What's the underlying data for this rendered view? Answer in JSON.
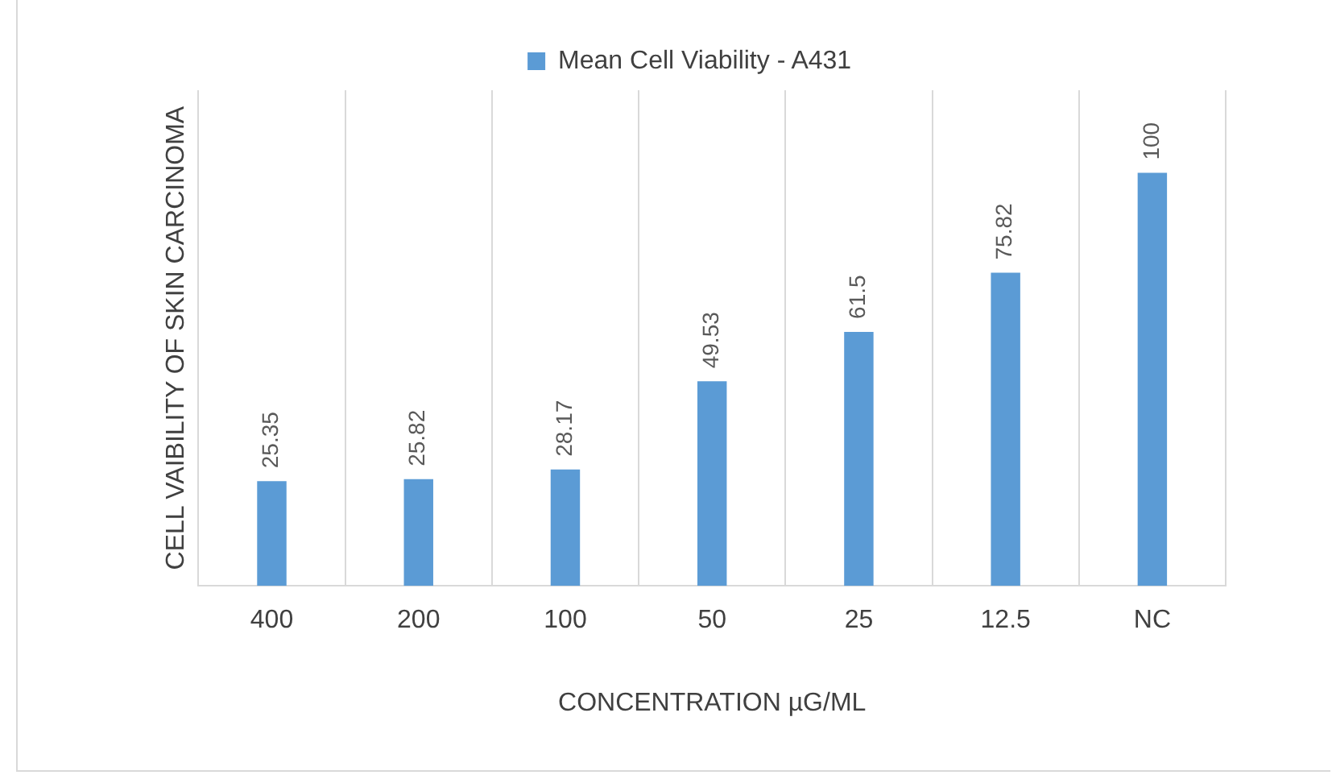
{
  "chart_data": {
    "type": "bar",
    "xlabel": "CONCENTRATION µG/ML",
    "ylabel": "CELL VAIBILITY OF SKIN CARCINOMA",
    "categories": [
      "400",
      "200",
      "100",
      "50",
      "25",
      "12.5",
      "NC"
    ],
    "series": [
      {
        "name": "Mean Cell Viability - A431",
        "color": "#5b9bd5",
        "values": [
          25.35,
          25.82,
          28.17,
          49.53,
          61.5,
          75.82,
          100
        ]
      }
    ],
    "data_labels": true,
    "grid": "x",
    "legend": "top",
    "tick_labels": "x"
  }
}
